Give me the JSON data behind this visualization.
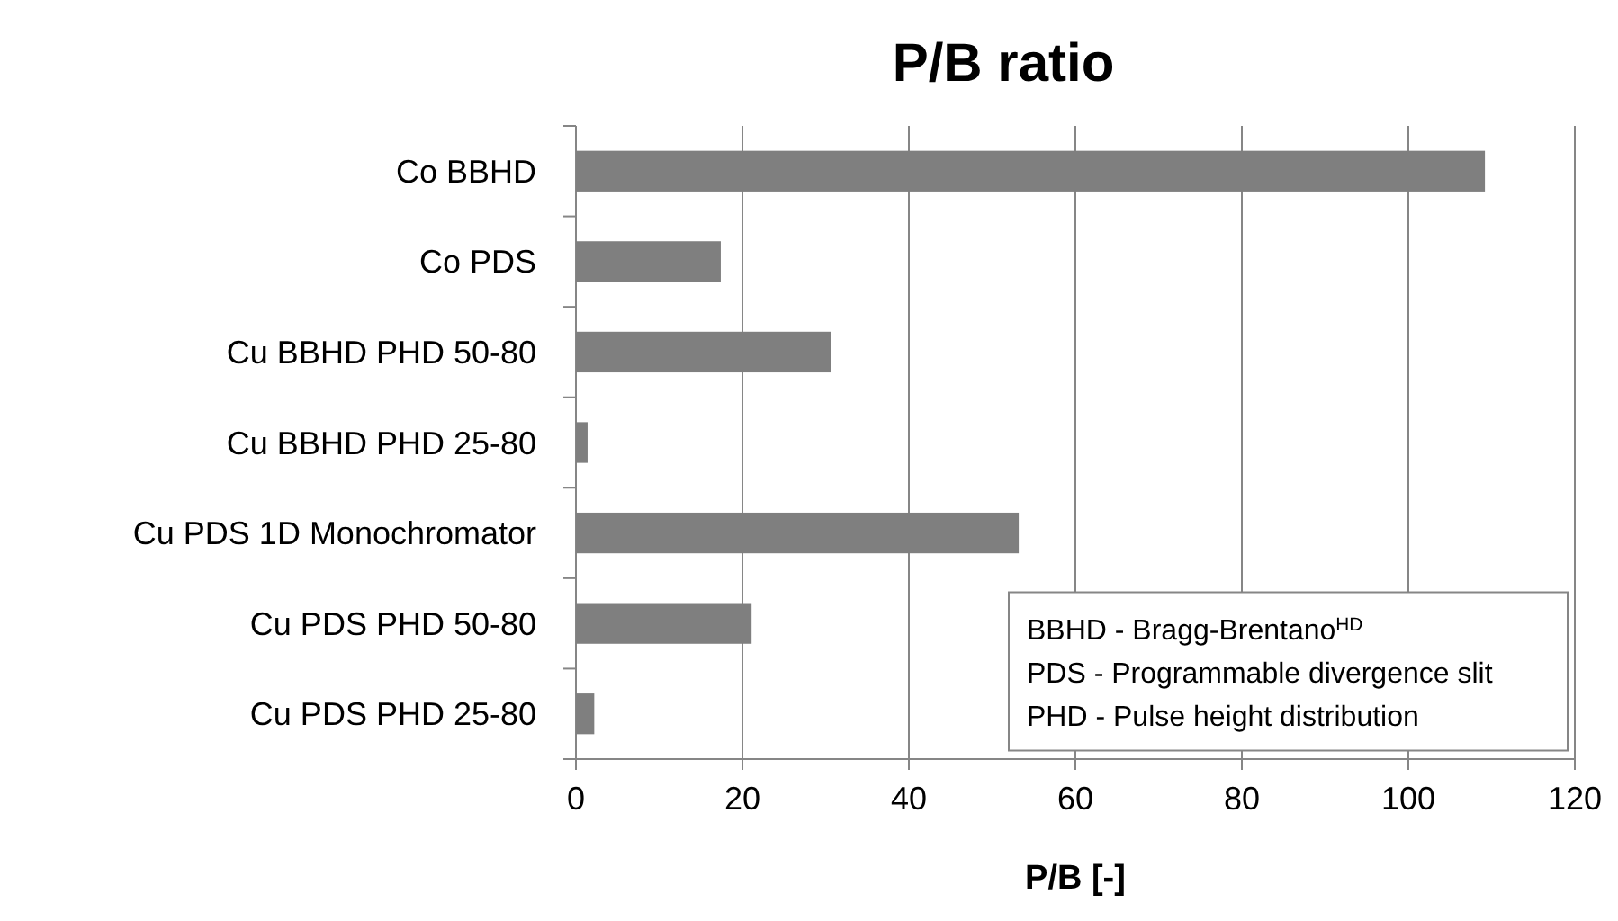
{
  "chart_data": {
    "type": "bar",
    "title": "P/B ratio",
    "xlabel": "P/B [-]",
    "orientation": "horizontal",
    "categories": [
      "Co BBHD",
      "Co PDS",
      "Cu BBHD PHD 50-80",
      "Cu BBHD PHD 25-80",
      "Cu PDS 1D Monochromator",
      "Cu PDS PHD 50-80",
      "Cu PDS PHD 25-80"
    ],
    "values": [
      109.2,
      17.4,
      30.6,
      1.4,
      53.2,
      21.1,
      2.2
    ],
    "color": "#7f7f7f",
    "xlim": [
      0,
      120
    ],
    "xticks": [
      0,
      20,
      40,
      60,
      80,
      100,
      120
    ],
    "grid": "x",
    "annotations": [
      "BBHD - Bragg-Brentano$^{HD}$",
      "PDS - Programmable divergence slit",
      "PHD - Pulse height distribution"
    ]
  }
}
